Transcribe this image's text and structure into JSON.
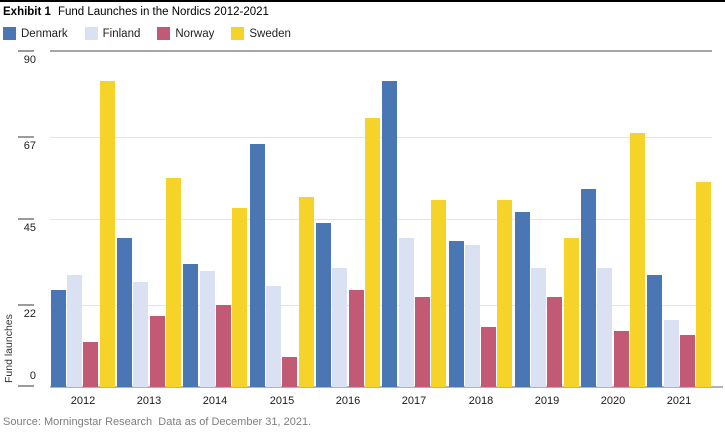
{
  "header": {
    "exhibit_label": "Exhibit 1",
    "title": "Fund Launches in the Nordics 2012-2021"
  },
  "source_line": "Source: Morningstar Research  Data as of December 31, 2021.",
  "chart_data": {
    "type": "bar",
    "title": "Fund Launches in the Nordics 2012-2021",
    "categories": [
      "2012",
      "2013",
      "2014",
      "2015",
      "2016",
      "2017",
      "2018",
      "2019",
      "2020",
      "2021"
    ],
    "series": [
      {
        "name": "Denmark",
        "color": "#4a76b4",
        "values": [
          26,
          40,
          33,
          65,
          44,
          82,
          39,
          47,
          53,
          30
        ]
      },
      {
        "name": "Finland",
        "color": "#d9e1f2",
        "values": [
          30,
          28,
          31,
          27,
          32,
          40,
          38,
          32,
          32,
          18
        ]
      },
      {
        "name": "Norway",
        "color": "#c35a75",
        "values": [
          12,
          19,
          22,
          8,
          26,
          24,
          16,
          24,
          15,
          14
        ]
      },
      {
        "name": "Sweden",
        "color": "#f5d328",
        "values": [
          82,
          56,
          48,
          51,
          72,
          50,
          50,
          40,
          68,
          55
        ]
      }
    ],
    "xlabel": "",
    "ylabel": "Fund launches",
    "yticks": [
      0,
      22,
      45,
      67,
      90
    ],
    "ylim": [
      0,
      90
    ],
    "grid": "horizontal",
    "legend_position": "top-left",
    "colors": {
      "grid_light": "#e4e4e4",
      "grid_top": "#a6a6a6",
      "baseline": "#b3b3b3",
      "tick_text": "#222222",
      "source_text": "#7e7e7e"
    }
  }
}
